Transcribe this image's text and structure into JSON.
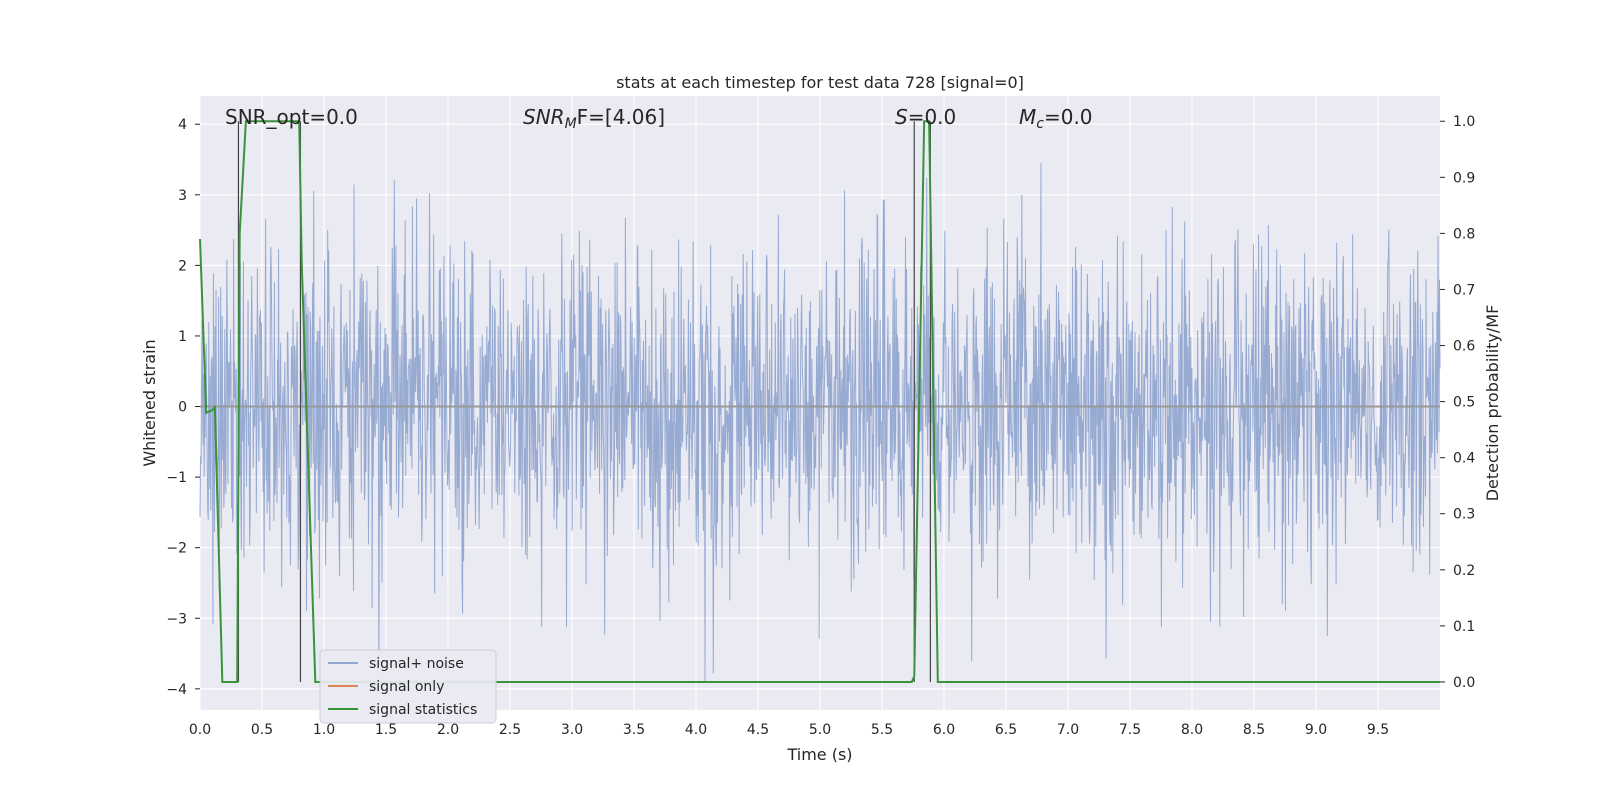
{
  "chart_data": {
    "type": "line",
    "title": "stats at each timestep for test data 728 [signal=0]",
    "xlabel": "Time (s)",
    "ylabel": "Whitened strain",
    "ylabel_right": "Detection probability/MF",
    "xlim": [
      0.0,
      10.0
    ],
    "ylim": [
      -4.3,
      4.4
    ],
    "ylim_right": [
      -0.05,
      1.045
    ],
    "xticks": [
      "0.0",
      "0.5",
      "1.0",
      "1.5",
      "2.0",
      "2.5",
      "3.0",
      "3.5",
      "4.0",
      "4.5",
      "5.0",
      "5.5",
      "6.0",
      "6.5",
      "7.0",
      "7.5",
      "8.0",
      "8.5",
      "9.0",
      "9.5"
    ],
    "yticks": [
      "4",
      "3",
      "2",
      "1",
      "0",
      "−1",
      "−2",
      "−3",
      "−4"
    ],
    "yticks_right": [
      "1.0",
      "0.9",
      "0.8",
      "0.7",
      "0.6",
      "0.5",
      "0.4",
      "0.3",
      "0.2",
      "0.1",
      "0.0"
    ],
    "grid": true,
    "legend_position": "lower-left",
    "annotations": {
      "snr_opt": "SNR_opt=0.0",
      "snr_mf_prefix": "SNR",
      "snr_mf_sub": "M",
      "snr_mf_suffix": "F=[4.06]",
      "s_label": "S",
      "s_value": "=0.0",
      "mc_label": "M",
      "mc_sub": "c",
      "mc_value": "=0.0"
    },
    "series": [
      {
        "name": "signal+ noise",
        "color": "#92a6d0",
        "description_free": true,
        "amplitude_envelope": [
          -3.9,
          4.0
        ]
      },
      {
        "name": "signal only",
        "color": "#dd8452",
        "x": [
          0.0,
          10.0
        ],
        "y": [
          0.0,
          0.0
        ]
      },
      {
        "name": "signal statistics",
        "color": "#3a923a",
        "axis": "right",
        "x": [
          0.0,
          0.05,
          0.1,
          0.12,
          0.18,
          0.3,
          0.32,
          0.37,
          0.8,
          0.82,
          0.93,
          5.74,
          5.76,
          5.8,
          5.84,
          5.88,
          5.95,
          10.0
        ],
        "y": [
          0.79,
          0.48,
          0.485,
          0.49,
          0.0,
          0.0,
          0.8,
          1.0,
          1.0,
          0.75,
          0.0,
          0.0,
          0.01,
          0.5,
          1.0,
          1.0,
          0.0,
          0.0
        ]
      }
    ],
    "vertical_markers": [
      0.31,
      0.81,
      5.76,
      5.89
    ]
  }
}
